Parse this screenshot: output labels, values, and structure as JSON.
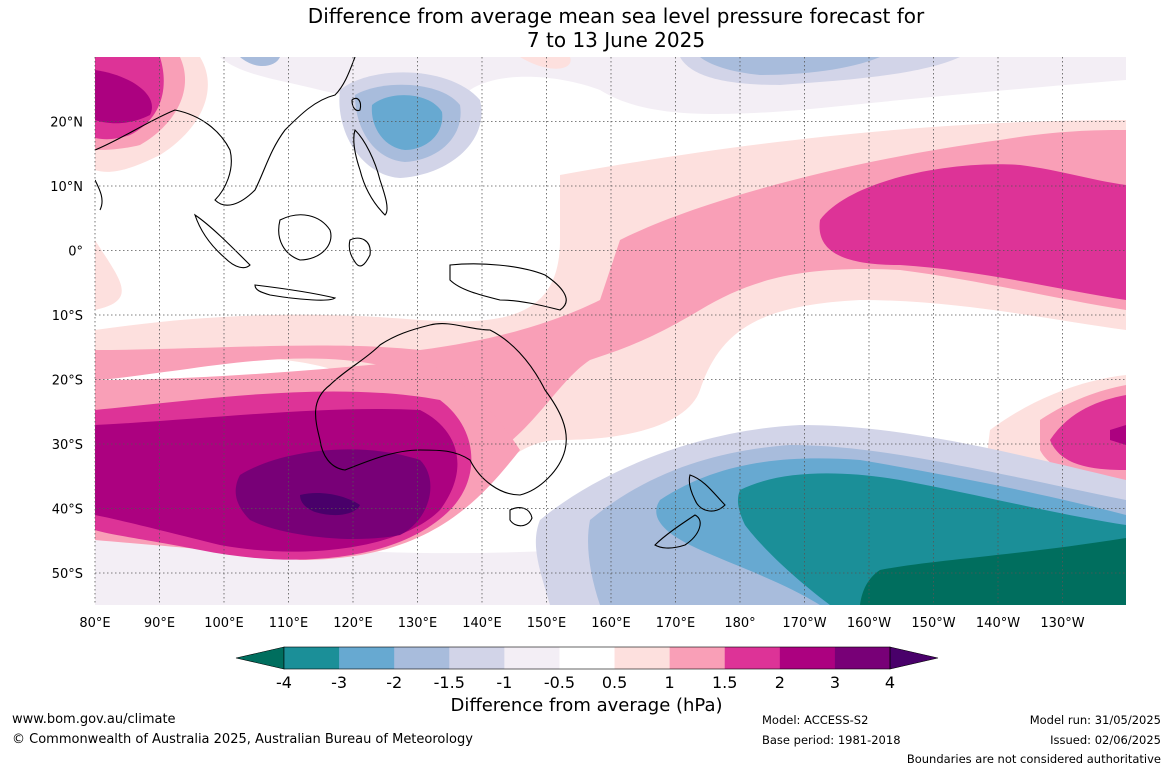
{
  "title_line1": "Difference from average mean sea level pressure forecast for",
  "title_line2": "7 to 13 June 2025",
  "lon_labels": [
    "80°E",
    "90°E",
    "100°E",
    "110°E",
    "120°E",
    "130°E",
    "140°E",
    "150°E",
    "160°E",
    "170°E",
    "180°",
    "170°W",
    "160°W",
    "150°W",
    "140°W",
    "130°W"
  ],
  "lat_labels": [
    "20°N",
    "10°N",
    "0°",
    "10°S",
    "20°S",
    "30°S",
    "40°S",
    "50°S"
  ],
  "colorbar": {
    "ticks": [
      "-4",
      "-3",
      "-2",
      "-1.5",
      "-1",
      "-0.5",
      "0.5",
      "1",
      "1.5",
      "2",
      "3",
      "4"
    ],
    "colors": [
      "#006e5e",
      "#1b8f98",
      "#67a9d1",
      "#a8bcdc",
      "#d2d4e8",
      "#f3eef5",
      "#ffffff",
      "#fde0de",
      "#f99fb7",
      "#dd3397",
      "#ac0180",
      "#780077",
      "#49006a"
    ],
    "label": "Difference from average (hPa)"
  },
  "footer": {
    "url": "www.bom.gov.au/climate",
    "copyright": "© Commonwealth of Australia 2025, Australian Bureau of Meteorology",
    "model": "Model: ACCESS-S2",
    "base_period": "Base period: 1981-2018",
    "model_run": "Model run: 31/05/2025",
    "issued": "Issued: 02/06/2025",
    "disclaimer": "Boundaries are not considered authoritative"
  }
}
